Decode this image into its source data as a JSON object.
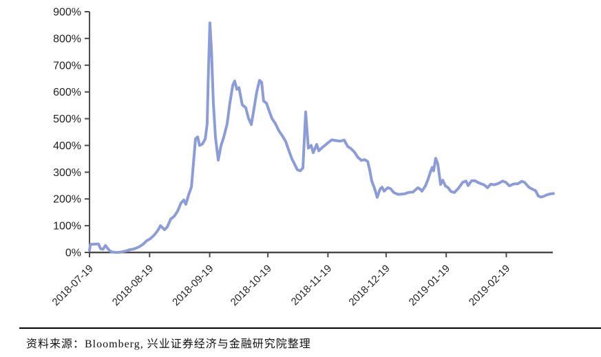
{
  "source": {
    "text": "资料来源：Bloomberg, 兴业证券经济与金融研究院整理"
  },
  "colors": {
    "line": "#8C9CD6",
    "axis": "#4a4a4a",
    "tick_text": "#1f1f1f",
    "background": "#ffffff",
    "divider": "#000000"
  },
  "chart_data": {
    "type": "line",
    "title": "",
    "xlabel": "",
    "ylabel": "",
    "ylim": [
      0,
      900
    ],
    "y_tick_format": "percent",
    "y_ticks": [
      0,
      100,
      200,
      300,
      400,
      500,
      600,
      700,
      800,
      900
    ],
    "y_tick_labels": [
      "0%",
      "100%",
      "200%",
      "300%",
      "400%",
      "500%",
      "600%",
      "700%",
      "800%",
      "900%"
    ],
    "x_tick_labels": [
      "2018-07-19",
      "2018-08-19",
      "2018-09-19",
      "2018-10-19",
      "2018-11-19",
      "2018-12-19",
      "2019-01-19",
      "2019-02-19"
    ],
    "x_tick_days": [
      0,
      31,
      62,
      92,
      123,
      153,
      184,
      215
    ],
    "x_start_date": "2018-07-19",
    "x_end_days": 239.3,
    "grid": false,
    "legend": "none",
    "series": [
      {
        "name": "value-pct",
        "color": "#8C9CD6",
        "points_days_pct": [
          [
            0,
            8
          ],
          [
            0.5,
            30
          ],
          [
            4.6,
            32
          ],
          [
            5.7,
            14
          ],
          [
            7,
            12
          ],
          [
            8.2,
            26
          ],
          [
            9.6,
            13
          ],
          [
            10.7,
            5
          ],
          [
            11.5,
            2
          ],
          [
            12.4,
            1
          ],
          [
            14.2,
            0
          ],
          [
            16,
            1
          ],
          [
            18.5,
            5
          ],
          [
            20.6,
            10
          ],
          [
            23,
            13
          ],
          [
            25.6,
            21
          ],
          [
            27.7,
            31
          ],
          [
            29.5,
            44
          ],
          [
            31.3,
            51
          ],
          [
            33.4,
            65
          ],
          [
            35.5,
            85
          ],
          [
            36.6,
            100
          ],
          [
            38.7,
            85
          ],
          [
            40.1,
            95
          ],
          [
            41.9,
            125
          ],
          [
            43.7,
            135
          ],
          [
            45.5,
            155
          ],
          [
            47.2,
            185
          ],
          [
            48.7,
            196
          ],
          [
            49.7,
            180
          ],
          [
            51.1,
            215
          ],
          [
            52.6,
            245
          ],
          [
            53.6,
            330
          ],
          [
            54.7,
            425
          ],
          [
            55.8,
            432
          ],
          [
            56.8,
            400
          ],
          [
            58.2,
            405
          ],
          [
            59.7,
            424
          ],
          [
            60.7,
            480
          ],
          [
            61.4,
            690
          ],
          [
            62.1,
            858
          ],
          [
            62.9,
            760
          ],
          [
            63.9,
            560
          ],
          [
            65,
            430
          ],
          [
            66.4,
            345
          ],
          [
            67.8,
            398
          ],
          [
            69.3,
            432
          ],
          [
            71,
            480
          ],
          [
            72.4,
            558
          ],
          [
            73.9,
            625
          ],
          [
            74.9,
            641
          ],
          [
            76,
            610
          ],
          [
            77.1,
            616
          ],
          [
            78.8,
            552
          ],
          [
            80.6,
            541
          ],
          [
            82,
            502
          ],
          [
            83.5,
            478
          ],
          [
            84.9,
            540
          ],
          [
            86.3,
            601
          ],
          [
            87.7,
            643
          ],
          [
            88.8,
            636
          ],
          [
            89.8,
            566
          ],
          [
            91.3,
            558
          ],
          [
            92.7,
            529
          ],
          [
            94.1,
            501
          ],
          [
            95.9,
            481
          ],
          [
            97.7,
            455
          ],
          [
            99.4,
            437
          ],
          [
            101.2,
            415
          ],
          [
            103,
            378
          ],
          [
            104.4,
            350
          ],
          [
            105.8,
            330
          ],
          [
            107.2,
            309
          ],
          [
            108.7,
            305
          ],
          [
            110.1,
            316
          ],
          [
            111.5,
            525
          ],
          [
            112.9,
            390
          ],
          [
            114.3,
            400
          ],
          [
            115.4,
            373
          ],
          [
            117.2,
            404
          ],
          [
            118.3,
            380
          ],
          [
            120,
            392
          ],
          [
            121.4,
            400
          ],
          [
            123.2,
            411
          ],
          [
            125,
            421
          ],
          [
            127.1,
            418
          ],
          [
            129.3,
            416
          ],
          [
            131.4,
            420
          ],
          [
            133.2,
            396
          ],
          [
            134.9,
            388
          ],
          [
            136.7,
            375
          ],
          [
            138.5,
            355
          ],
          [
            140.3,
            344
          ],
          [
            142,
            347
          ],
          [
            143.5,
            340
          ],
          [
            144.5,
            310
          ],
          [
            145.6,
            267
          ],
          [
            147,
            240
          ],
          [
            148.4,
            206
          ],
          [
            149.9,
            237
          ],
          [
            150.9,
            244
          ],
          [
            152,
            229
          ],
          [
            153.8,
            242
          ],
          [
            155.2,
            239
          ],
          [
            157,
            224
          ],
          [
            159.1,
            217
          ],
          [
            160.9,
            218
          ],
          [
            162.6,
            219
          ],
          [
            164.4,
            224
          ],
          [
            166.9,
            226
          ],
          [
            169.4,
            242
          ],
          [
            170.5,
            237
          ],
          [
            171.5,
            229
          ],
          [
            173.3,
            249
          ],
          [
            174.7,
            275
          ],
          [
            175.8,
            300
          ],
          [
            176.8,
            318
          ],
          [
            177.5,
            305
          ],
          [
            178.6,
            352
          ],
          [
            179.7,
            330
          ],
          [
            180.4,
            292
          ],
          [
            181.1,
            254
          ],
          [
            182.2,
            270
          ],
          [
            183.6,
            249
          ],
          [
            185,
            242
          ],
          [
            186.4,
            228
          ],
          [
            188.2,
            224
          ],
          [
            190.3,
            240
          ],
          [
            192.5,
            262
          ],
          [
            194.2,
            267
          ],
          [
            195.3,
            250
          ],
          [
            197.1,
            268
          ],
          [
            198.9,
            268
          ],
          [
            200.3,
            262
          ],
          [
            202,
            257
          ],
          [
            203.5,
            253
          ],
          [
            205.3,
            242
          ],
          [
            207,
            255
          ],
          [
            208.8,
            253
          ],
          [
            210.9,
            258
          ],
          [
            213.1,
            267
          ],
          [
            214.8,
            262
          ],
          [
            216.6,
            249
          ],
          [
            218.8,
            256
          ],
          [
            220.9,
            257
          ],
          [
            223,
            266
          ],
          [
            224.4,
            262
          ],
          [
            226.6,
            244
          ],
          [
            228.3,
            237
          ],
          [
            230.1,
            231
          ],
          [
            231.5,
            211
          ],
          [
            232.9,
            207
          ],
          [
            234.4,
            210
          ],
          [
            236.1,
            216
          ],
          [
            237.9,
            219
          ],
          [
            239.3,
            220
          ]
        ]
      }
    ]
  }
}
